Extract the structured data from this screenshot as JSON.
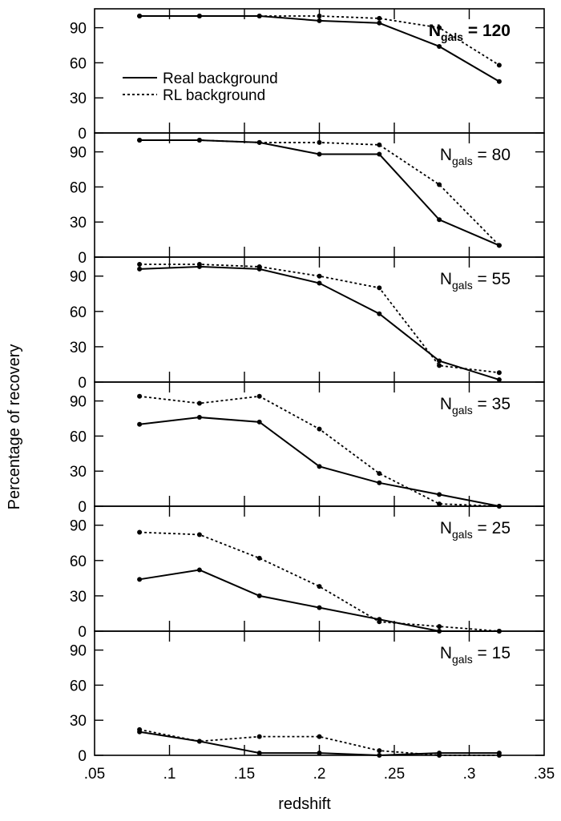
{
  "chart_data": {
    "type": "line",
    "xlabel": "redshift",
    "ylabel": "Percentage of recovery",
    "xlim": [
      0.05,
      0.35
    ],
    "ylim": [
      0,
      100
    ],
    "x_tick_labels": [
      ".05",
      ".1",
      ".15",
      ".2",
      ".25",
      ".3",
      ".35"
    ],
    "x_ticks": [
      0.05,
      0.1,
      0.15,
      0.2,
      0.25,
      0.3,
      0.35
    ],
    "y_tick_labels": [
      "0",
      "30",
      "60",
      "90"
    ],
    "y_ticks": [
      0,
      30,
      60,
      90
    ],
    "legend": {
      "placement": "top-left of first panel",
      "entries": [
        {
          "label": "Real background",
          "style": "solid"
        },
        {
          "label": "RL background",
          "style": "dotted"
        }
      ]
    },
    "x": [
      0.08,
      0.12,
      0.16,
      0.2,
      0.24,
      0.28,
      0.32
    ],
    "panels": [
      {
        "label_main": "N",
        "label_sub": "gals",
        "label_rest": " = 120",
        "series": [
          {
            "name": "Real background",
            "values": [
              100,
              100,
              100,
              96,
              94,
              74,
              44
            ]
          },
          {
            "name": "RL background",
            "values": [
              100,
              100,
              100,
              100,
              98,
              90,
              58
            ]
          }
        ]
      },
      {
        "label_main": "N",
        "label_sub": "gals",
        "label_rest": " = 80",
        "series": [
          {
            "name": "Real background",
            "values": [
              100,
              100,
              98,
              88,
              88,
              32,
              10
            ]
          },
          {
            "name": "RL background",
            "values": [
              100,
              100,
              98,
              98,
              96,
              62,
              10
            ]
          }
        ]
      },
      {
        "label_main": "N",
        "label_sub": "gals",
        "label_rest": " = 55",
        "series": [
          {
            "name": "Real background",
            "values": [
              96,
              98,
              96,
              84,
              58,
              18,
              2
            ]
          },
          {
            "name": "RL background",
            "values": [
              100,
              100,
              98,
              90,
              80,
              14,
              8
            ]
          }
        ]
      },
      {
        "label_main": "N",
        "label_sub": "gals",
        "label_rest": " = 35",
        "series": [
          {
            "name": "Real background",
            "values": [
              70,
              76,
              72,
              34,
              20,
              10,
              0
            ]
          },
          {
            "name": "RL background",
            "values": [
              94,
              88,
              94,
              66,
              28,
              2,
              0
            ]
          }
        ]
      },
      {
        "label_main": "N",
        "label_sub": "gals",
        "label_rest": " = 25",
        "series": [
          {
            "name": "Real background",
            "values": [
              44,
              52,
              30,
              20,
              10,
              0,
              0
            ]
          },
          {
            "name": "RL background",
            "values": [
              84,
              82,
              62,
              38,
              8,
              4,
              0
            ]
          }
        ]
      },
      {
        "label_main": "N",
        "label_sub": "gals",
        "label_rest": " = 15",
        "series": [
          {
            "name": "Real background",
            "values": [
              20,
              12,
              2,
              2,
              0,
              2,
              2
            ]
          },
          {
            "name": "RL background",
            "values": [
              22,
              12,
              16,
              16,
              4,
              0,
              0
            ]
          }
        ]
      }
    ],
    "colors": {
      "line": "#000000",
      "background": "#ffffff"
    },
    "grid": false
  }
}
